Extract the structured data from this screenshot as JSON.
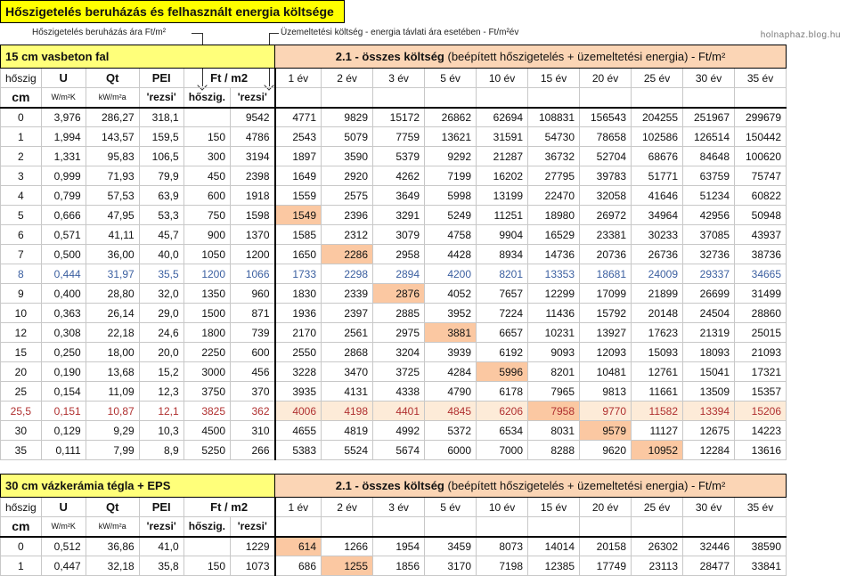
{
  "page_title": "Hőszigetelés beruházás és felhasznált energia költsége",
  "watermark": "holnaphaz.blog.hu",
  "annotations": {
    "invest_price": "Hőszigetelés beruházás ára Ft/m²",
    "operating_cost": "Üzemeltetési költség - energia távlati ára esetében - Ft/m²év"
  },
  "sections": [
    {
      "name": "15 cm vasbeton fal",
      "cost_title_prefix": "2.1 - összes költség",
      "cost_title_suffix": " (beépített hőszigetelés + üzemeltetési energia) - Ft/m²",
      "head1": [
        "hőszig",
        "U",
        "Qt",
        "PEI",
        "Ft / m2"
      ],
      "head2": [
        "cm",
        "W/m²K",
        "kW/m²a",
        "'rezsi'",
        "hőszig.",
        "'rezsi'"
      ],
      "years": [
        "1 év",
        "2 év",
        "3 év",
        "5 év",
        "10 év",
        "15 év",
        "20 év",
        "25 év",
        "30 év",
        "35 év"
      ],
      "rows": [
        {
          "c": [
            "0",
            "3,976",
            "286,27",
            "318,1",
            "",
            "9542",
            "4771",
            "9829",
            "15172",
            "26862",
            "62694",
            "108831",
            "156543",
            "204255",
            "251967",
            "299679"
          ]
        },
        {
          "c": [
            "1",
            "1,994",
            "143,57",
            "159,5",
            "150",
            "4786",
            "2543",
            "5079",
            "7759",
            "13621",
            "31591",
            "54730",
            "78658",
            "102586",
            "126514",
            "150442"
          ]
        },
        {
          "c": [
            "2",
            "1,331",
            "95,83",
            "106,5",
            "300",
            "3194",
            "1897",
            "3590",
            "5379",
            "9292",
            "21287",
            "36732",
            "52704",
            "68676",
            "84648",
            "100620"
          ]
        },
        {
          "c": [
            "3",
            "0,999",
            "71,93",
            "79,9",
            "450",
            "2398",
            "1649",
            "2920",
            "4262",
            "7199",
            "16202",
            "27795",
            "39783",
            "51771",
            "63759",
            "75747"
          ]
        },
        {
          "c": [
            "4",
            "0,799",
            "57,53",
            "63,9",
            "600",
            "1918",
            "1559",
            "2575",
            "3649",
            "5998",
            "13199",
            "22470",
            "32058",
            "41646",
            "51234",
            "60822"
          ]
        },
        {
          "c": [
            "5",
            "0,666",
            "47,95",
            "53,3",
            "750",
            "1598",
            "1549",
            "2396",
            "3291",
            "5249",
            "11251",
            "18980",
            "26972",
            "34964",
            "42956",
            "50948"
          ],
          "hl": 6
        },
        {
          "c": [
            "6",
            "0,571",
            "41,11",
            "45,7",
            "900",
            "1370",
            "1585",
            "2312",
            "3079",
            "4758",
            "9904",
            "16529",
            "23381",
            "30233",
            "37085",
            "43937"
          ]
        },
        {
          "c": [
            "7",
            "0,500",
            "36,00",
            "40,0",
            "1050",
            "1200",
            "1650",
            "2286",
            "2958",
            "4428",
            "8934",
            "14736",
            "20736",
            "26736",
            "32736",
            "38736"
          ],
          "hl": 7
        },
        {
          "c": [
            "8",
            "0,444",
            "31,97",
            "35,5",
            "1200",
            "1066",
            "1733",
            "2298",
            "2894",
            "4200",
            "8201",
            "13353",
            "18681",
            "24009",
            "29337",
            "34665"
          ],
          "style": "blue"
        },
        {
          "c": [
            "9",
            "0,400",
            "28,80",
            "32,0",
            "1350",
            "960",
            "1830",
            "2339",
            "2876",
            "4052",
            "7657",
            "12299",
            "17099",
            "21899",
            "26699",
            "31499"
          ],
          "hl": 8
        },
        {
          "c": [
            "10",
            "0,363",
            "26,14",
            "29,0",
            "1500",
            "871",
            "1936",
            "2397",
            "2885",
            "3952",
            "7224",
            "11436",
            "15792",
            "20148",
            "24504",
            "28860"
          ]
        },
        {
          "c": [
            "12",
            "0,308",
            "22,18",
            "24,6",
            "1800",
            "739",
            "2170",
            "2561",
            "2975",
            "3881",
            "6657",
            "10231",
            "13927",
            "17623",
            "21319",
            "25015"
          ],
          "hl": 9
        },
        {
          "c": [
            "15",
            "0,250",
            "18,00",
            "20,0",
            "2250",
            "600",
            "2550",
            "2868",
            "3204",
            "3939",
            "6192",
            "9093",
            "12093",
            "15093",
            "18093",
            "21093"
          ]
        },
        {
          "c": [
            "20",
            "0,190",
            "13,68",
            "15,2",
            "3000",
            "456",
            "3228",
            "3470",
            "3725",
            "4284",
            "5996",
            "8201",
            "10481",
            "12761",
            "15041",
            "17321"
          ],
          "hl": 10
        },
        {
          "c": [
            "25",
            "0,154",
            "11,09",
            "12,3",
            "3750",
            "370",
            "3935",
            "4131",
            "4338",
            "4790",
            "6178",
            "7965",
            "9813",
            "11661",
            "13509",
            "15357"
          ]
        },
        {
          "c": [
            "25,5",
            "0,151",
            "10,87",
            "12,1",
            "3825",
            "362",
            "4006",
            "4198",
            "4401",
            "4845",
            "6206",
            "7958",
            "9770",
            "11582",
            "13394",
            "15206"
          ],
          "style": "red",
          "hl": 11,
          "soft": [
            6,
            7,
            8,
            9,
            10,
            12,
            13,
            14,
            15
          ]
        },
        {
          "c": [
            "30",
            "0,129",
            "9,29",
            "10,3",
            "4500",
            "310",
            "4655",
            "4819",
            "4992",
            "5372",
            "6534",
            "8031",
            "9579",
            "11127",
            "12675",
            "14223"
          ],
          "hl": 12
        },
        {
          "c": [
            "35",
            "0,111",
            "7,99",
            "8,9",
            "5250",
            "266",
            "5383",
            "5524",
            "5674",
            "6000",
            "7000",
            "8288",
            "9620",
            "10952",
            "12284",
            "13616"
          ],
          "hl": 13
        }
      ]
    },
    {
      "name": "30 cm vázkerámia tégla + EPS",
      "cost_title_prefix": "2.1 - összes költség",
      "cost_title_suffix": " (beépített hőszigetelés + üzemeltetési energia) - Ft/m²",
      "head1": [
        "hőszig",
        "U",
        "Qt",
        "PEI",
        "Ft / m2"
      ],
      "head2": [
        "cm",
        "W/m²K",
        "kW/m²a",
        "'rezsi'",
        "hőszig.",
        "'rezsi'"
      ],
      "years": [
        "1 év",
        "2 év",
        "3 év",
        "5 év",
        "10 év",
        "15 év",
        "20 év",
        "25 év",
        "30 év",
        "35 év"
      ],
      "rows": [
        {
          "c": [
            "0",
            "0,512",
            "36,86",
            "41,0",
            "",
            "1229",
            "614",
            "1266",
            "1954",
            "3459",
            "8073",
            "14014",
            "20158",
            "26302",
            "32446",
            "38590"
          ],
          "hl": 6
        },
        {
          "c": [
            "1",
            "0,447",
            "32,18",
            "35,8",
            "150",
            "1073",
            "686",
            "1255",
            "1856",
            "3170",
            "7198",
            "12385",
            "17749",
            "23113",
            "28477",
            "33841"
          ],
          "hl": 7
        }
      ]
    }
  ],
  "colors": {
    "title_bg": "#ffff00",
    "section_bg": "#ffff7a",
    "cost_header_bg": "#fbd5b5",
    "highlight": "#fbc8a2",
    "blue_row": "#3b5fa0",
    "red_row": "#b03030"
  }
}
